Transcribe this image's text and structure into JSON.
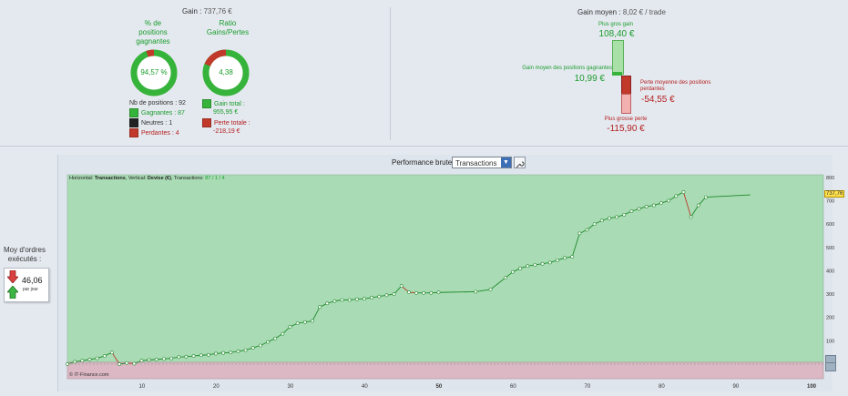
{
  "summary": {
    "gain_label": "Gain :",
    "gain_value": "737,76 €",
    "pct_title_1": "% de",
    "pct_title_2": "positions",
    "pct_title_3": "gagnantes",
    "pct_value": "94,57 %",
    "ratio_title_1": "Ratio",
    "ratio_title_2": "Gains/Pertes",
    "ratio_value": "4,38",
    "nb_positions": "Nb de positions : 92",
    "gagnantes": "Gagnantes : 87",
    "neutres": "Neutres : 1",
    "perdantes": "Perdantes : 4",
    "gain_total_label": "Gain total :",
    "gain_total_value": "955,95 €",
    "perte_totale_label": "Perte totale :",
    "perte_totale_value": "-218,19 €",
    "pct_win_fraction": 0.9457,
    "ratio_win_fraction": 0.8142
  },
  "gain_moyen": {
    "label": "Gain moyen :",
    "value": "8,02 € / trade",
    "plus_gros_gain_label": "Plus gros gain",
    "plus_gros_gain_value": "108,40 €",
    "gain_moyen_gagnantes_label": "Gain moyen des positions gagnantes",
    "gain_moyen_gagnantes_value": "10,99 €",
    "perte_moyenne_label_1": "Perte moyenne des positions",
    "perte_moyenne_label_2": "perdantes",
    "perte_moyenne_value": "-54,55 €",
    "plus_grosse_perte_label": "Plus grosse perte",
    "plus_grosse_perte_value": "-115,90 €"
  },
  "performance": {
    "title": "Performance brute",
    "select_value": "Transactions",
    "legend_prefix": "Horizontal: ",
    "legend_h": "Transactions",
    "legend_mid": ", Vertical: ",
    "legend_v": "Devise (€)",
    "legend_mid2": ", Transactions: ",
    "legend_count": "87 / 1 / 4",
    "watermark": "© IT-Finance.com",
    "last_value": "737,76"
  },
  "side": {
    "label_1": "Moy d'ordres",
    "label_2": "exécutés :",
    "value": "46,06",
    "unit": "par jour"
  },
  "colors": {
    "win": "#36b33a",
    "loss": "#c0392b",
    "neutral": "#222222",
    "chart_pos_bg": "#a9dbb4",
    "chart_neg_bg": "#dbb8c3"
  },
  "chart_data": {
    "type": "line",
    "xlabel": "",
    "ylabel": "",
    "xlim": [
      0,
      100
    ],
    "ylim": [
      -30,
      830
    ],
    "x_ticks": [
      "10",
      "20",
      "30",
      "40",
      "50",
      "60",
      "70",
      "80",
      "90",
      "100"
    ],
    "y_ticks": [
      "100",
      "200",
      "300",
      "400",
      "500",
      "600",
      "700",
      "800"
    ],
    "points": [
      [
        0,
        0
      ],
      [
        1,
        10
      ],
      [
        2,
        15
      ],
      [
        3,
        20
      ],
      [
        4,
        25
      ],
      [
        5,
        35
      ],
      [
        6,
        50
      ],
      [
        7,
        0
      ],
      [
        8,
        5
      ],
      [
        9,
        2
      ],
      [
        10,
        15
      ],
      [
        11,
        18
      ],
      [
        12,
        20
      ],
      [
        13,
        22
      ],
      [
        14,
        25
      ],
      [
        15,
        30
      ],
      [
        16,
        32
      ],
      [
        17,
        35
      ],
      [
        18,
        38
      ],
      [
        19,
        40
      ],
      [
        20,
        45
      ],
      [
        21,
        48
      ],
      [
        22,
        50
      ],
      [
        23,
        55
      ],
      [
        24,
        60
      ],
      [
        25,
        70
      ],
      [
        26,
        80
      ],
      [
        27,
        95
      ],
      [
        28,
        110
      ],
      [
        29,
        130
      ],
      [
        30,
        160
      ],
      [
        31,
        175
      ],
      [
        32,
        180
      ],
      [
        33,
        185
      ],
      [
        34,
        245
      ],
      [
        35,
        260
      ],
      [
        36,
        270
      ],
      [
        37,
        275
      ],
      [
        38,
        275
      ],
      [
        39,
        278
      ],
      [
        40,
        280
      ],
      [
        41,
        285
      ],
      [
        42,
        290
      ],
      [
        43,
        295
      ],
      [
        44,
        300
      ],
      [
        45,
        335
      ],
      [
        46,
        308
      ],
      [
        47,
        305
      ],
      [
        48,
        305
      ],
      [
        49,
        305
      ],
      [
        50,
        307
      ],
      [
        55,
        310
      ],
      [
        57,
        320
      ],
      [
        59,
        370
      ],
      [
        60,
        395
      ],
      [
        61,
        410
      ],
      [
        62,
        420
      ],
      [
        63,
        425
      ],
      [
        64,
        430
      ],
      [
        65,
        435
      ],
      [
        66,
        445
      ],
      [
        67,
        455
      ],
      [
        68,
        460
      ],
      [
        69,
        560
      ],
      [
        70,
        575
      ],
      [
        71,
        600
      ],
      [
        72,
        615
      ],
      [
        73,
        625
      ],
      [
        74,
        630
      ],
      [
        75,
        640
      ],
      [
        76,
        655
      ],
      [
        77,
        665
      ],
      [
        78,
        675
      ],
      [
        79,
        680
      ],
      [
        80,
        690
      ],
      [
        81,
        700
      ],
      [
        82,
        720
      ],
      [
        83,
        737
      ],
      [
        84,
        630
      ],
      [
        85,
        680
      ],
      [
        86,
        715
      ],
      [
        92,
        725
      ]
    ],
    "grid": false,
    "legend": "top-left"
  }
}
